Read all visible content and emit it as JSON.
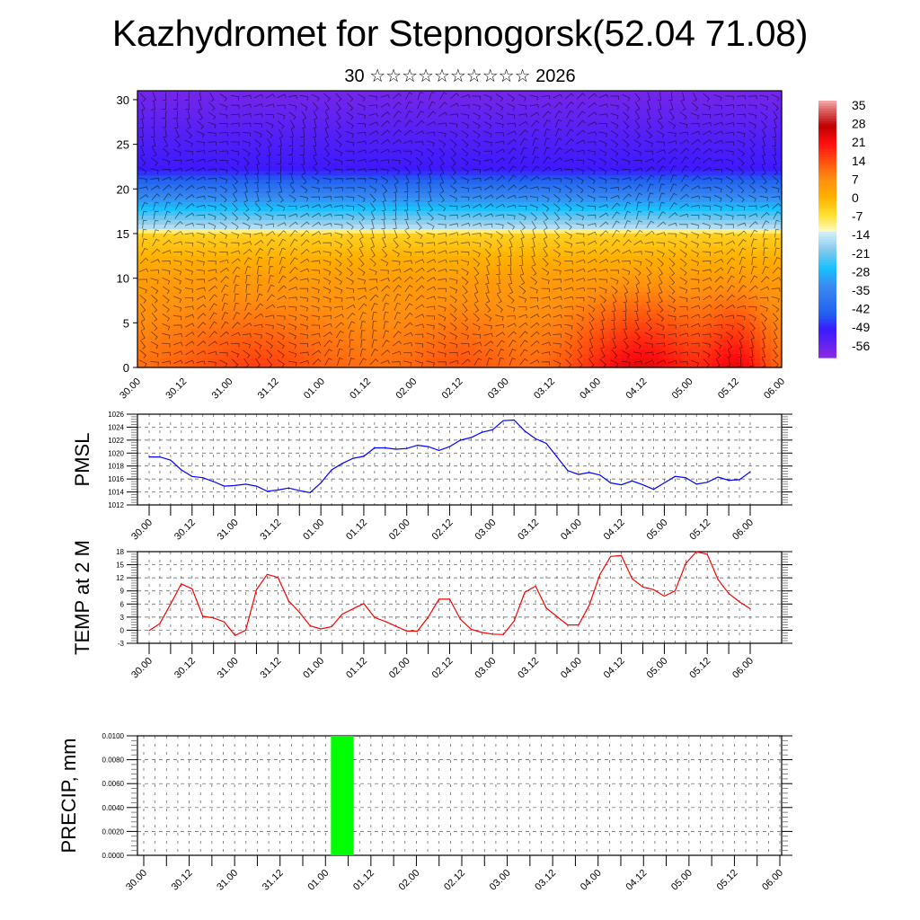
{
  "header": {
    "title": "Kazhydromet for Stepnogorsk(52.04 71.08)",
    "subtitle": "30 ☆☆☆☆☆☆☆☆☆☆ 2026"
  },
  "time_labels": [
    "30.00",
    "30.12",
    "31.00",
    "31.12",
    "01.00",
    "01.12",
    "02.00",
    "02.12",
    "03.00",
    "03.12",
    "04.00",
    "04.12",
    "05.00",
    "05.12",
    "06.00"
  ],
  "chart_data": [
    {
      "type": "heatmap",
      "name": "vertical-cross-section",
      "title": "",
      "xlabel": "",
      "ylabel": "",
      "x_ticks": [
        "30.00",
        "30.12",
        "31.00",
        "31.12",
        "01.00",
        "01.12",
        "02.00",
        "02.12",
        "03.00",
        "03.12",
        "04.00",
        "04.12",
        "05.00",
        "05.12",
        "06.00"
      ],
      "y_ticks": [
        0,
        5,
        10,
        15,
        20,
        25,
        30
      ],
      "ylim": [
        0,
        31
      ],
      "colorbar": {
        "labels": [
          35,
          28,
          21,
          14,
          7,
          0,
          -7,
          -14,
          -21,
          -28,
          -35,
          -42,
          -49,
          -56
        ],
        "range": [
          -63,
          38
        ],
        "stops": [
          {
            "v": -63,
            "c": "#8a2be2"
          },
          {
            "v": -52,
            "c": "#3a1aff"
          },
          {
            "v": -46,
            "c": "#2060f0"
          },
          {
            "v": -35,
            "c": "#3a8af0"
          },
          {
            "v": -28,
            "c": "#18c0ff"
          },
          {
            "v": -21,
            "c": "#80c8ec"
          },
          {
            "v": -14,
            "c": "#d0ecf8"
          },
          {
            "v": -13.9,
            "c": "#fffbd0"
          },
          {
            "v": -7,
            "c": "#ffe030"
          },
          {
            "v": 0,
            "c": "#ffb000"
          },
          {
            "v": 7,
            "c": "#ff9010"
          },
          {
            "v": 14,
            "c": "#ff5010"
          },
          {
            "v": 21,
            "c": "#ff1010"
          },
          {
            "v": 28,
            "c": "#c00000"
          },
          {
            "v": 35,
            "c": "#e07070"
          },
          {
            "v": 38,
            "c": "#f4b0b0"
          }
        ]
      },
      "field_description": "temperature by level: warm orange/red near surface (0-10), yellow ~12-15, light blue ~16, cyan/blue 17-22, violet 23-31; warm maximum near 04.12-05.12 at low levels; overlaid wind barbs"
    },
    {
      "type": "line",
      "name": "pmsl",
      "ylabel": "PMSL",
      "ylim": [
        1012,
        1026
      ],
      "y_ticks": [
        1012,
        1014,
        1016,
        1018,
        1020,
        1022,
        1024,
        1026
      ],
      "x_ticks": [
        "30.00",
        "30.12",
        "31.00",
        "31.12",
        "01.00",
        "01.12",
        "02.00",
        "02.12",
        "03.00",
        "03.12",
        "04.00",
        "04.12",
        "05.00",
        "05.12",
        "06.00"
      ],
      "step_hours": 3,
      "color": "#0000ff",
      "values": [
        1019.4,
        1019.4,
        1018.9,
        1017.4,
        1016.4,
        1016.2,
        1015.6,
        1014.9,
        1015.0,
        1015.2,
        1014.9,
        1014.1,
        1014.3,
        1014.6,
        1014.2,
        1013.9,
        1015.4,
        1017.4,
        1018.4,
        1019.2,
        1019.5,
        1020.8,
        1020.8,
        1020.6,
        1020.7,
        1021.2,
        1021.0,
        1020.4,
        1021.0,
        1022.0,
        1022.4,
        1023.2,
        1023.6,
        1025.0,
        1025.1,
        1023.4,
        1022.2,
        1021.5,
        1019.4,
        1017.3,
        1016.7,
        1017.0,
        1016.6,
        1015.4,
        1015.1,
        1015.7,
        1015.1,
        1014.4,
        1015.4,
        1016.4,
        1016.2,
        1015.2,
        1015.5,
        1016.3,
        1015.8,
        1015.9,
        1017.1
      ]
    },
    {
      "type": "line",
      "name": "temp2m",
      "ylabel": "TEMP at 2 M",
      "ylim": [
        -3,
        18
      ],
      "y_ticks": [
        -3,
        0,
        3,
        6,
        9,
        12,
        15,
        18
      ],
      "x_ticks": [
        "30.00",
        "30.12",
        "31.00",
        "31.12",
        "01.00",
        "01.12",
        "02.00",
        "02.12",
        "03.00",
        "03.12",
        "04.00",
        "04.12",
        "05.00",
        "05.12",
        "06.00"
      ],
      "step_hours": 3,
      "color": "#ff0000",
      "values": [
        -0.1,
        1.5,
        6.0,
        10.6,
        9.5,
        3.2,
        2.8,
        1.9,
        -1.2,
        0.0,
        9.3,
        12.8,
        12.1,
        6.7,
        4.1,
        1.0,
        0.3,
        0.8,
        3.7,
        4.9,
        6.1,
        2.9,
        2.0,
        0.9,
        -0.2,
        -0.2,
        3.0,
        7.1,
        7.1,
        2.5,
        0.2,
        -0.5,
        -0.9,
        -1.0,
        2.1,
        8.7,
        10.1,
        5.1,
        3.1,
        1.2,
        1.2,
        5.7,
        12.8,
        16.9,
        17.1,
        11.8,
        9.9,
        9.3,
        7.8,
        9.0,
        15.3,
        18.0,
        17.4,
        11.6,
        8.4,
        6.5,
        4.9
      ]
    },
    {
      "type": "bar",
      "name": "precip",
      "ylabel": "PRECIP, mm",
      "ylim": [
        0,
        0.01
      ],
      "y_ticks": [
        "0.0000",
        "0.0020",
        "0.0040",
        "0.0060",
        "0.0080",
        "0.0100"
      ],
      "x_ticks": [
        "30.00",
        "30.12",
        "31.00",
        "31.12",
        "01.00",
        "01.12",
        "02.00",
        "02.12",
        "03.00",
        "03.12",
        "04.00",
        "04.12",
        "05.00",
        "05.12",
        "06.00"
      ],
      "color": "#00ff00",
      "bars": [
        {
          "start_hours": 48,
          "end_hours": 54,
          "value": 0.01
        }
      ]
    }
  ]
}
